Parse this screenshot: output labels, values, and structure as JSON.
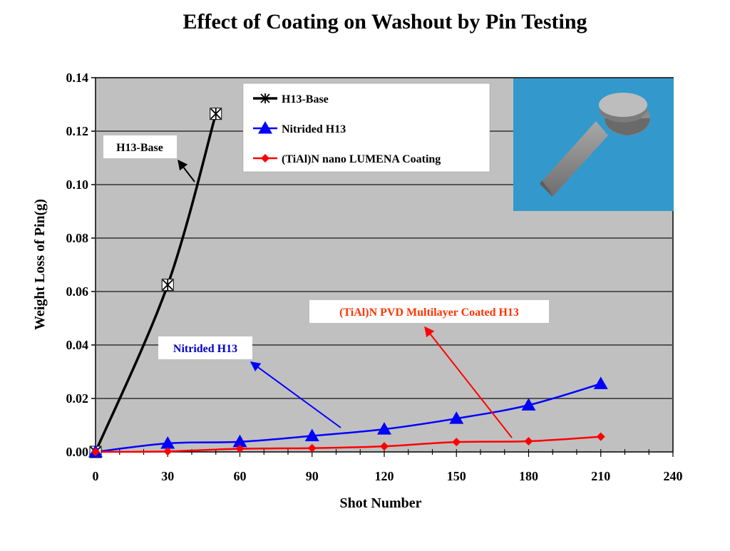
{
  "chart_data": {
    "type": "line",
    "title": "Effect of Coating on Washout by Pin Testing",
    "xlabel": "Shot Number",
    "ylabel": "Weight Loss of Pin(g)",
    "xlim": [
      0,
      240
    ],
    "ylim": [
      0,
      0.14
    ],
    "x_ticks": [
      "0",
      "30",
      "60",
      "90",
      "120",
      "150",
      "180",
      "210",
      "240"
    ],
    "y_ticks": [
      "0.00",
      "0.02",
      "0.04",
      "0.06",
      "0.08",
      "0.10",
      "0.12",
      "0.14"
    ],
    "grid": true,
    "plot_background": "#c0c0c0",
    "legend_position": "top",
    "series": [
      {
        "name": "H13-Base",
        "color": "#000000",
        "marker": "asterisk",
        "x": [
          0,
          30,
          50
        ],
        "y": [
          0.0,
          0.0625,
          0.1265
        ]
      },
      {
        "name": "Nitrided H13",
        "color": "#0000ff",
        "marker": "triangle",
        "x": [
          0,
          30,
          60,
          90,
          120,
          150,
          180,
          210
        ],
        "y": [
          0.0,
          0.0032,
          0.0038,
          0.006,
          0.0085,
          0.0125,
          0.0175,
          0.0255
        ]
      },
      {
        "name": "(TiAl)N nano LUMENA Coating",
        "color": "#ff0000",
        "marker": "diamond",
        "x": [
          0,
          30,
          60,
          90,
          120,
          150,
          180,
          210
        ],
        "y": [
          0.0,
          0.0002,
          0.0012,
          0.0014,
          0.0021,
          0.0037,
          0.004,
          0.0057
        ]
      }
    ],
    "annotations": [
      {
        "text": "H13-Base",
        "color": "#000000"
      },
      {
        "text": "Nitrided H13",
        "color": "#0000cc"
      },
      {
        "text": "(TiAl)N PVD Multilayer Coated H13",
        "color": "#ff3300"
      }
    ],
    "inset_image": {
      "description_icon": "pin-3d-icon",
      "background": "#3399cc"
    }
  }
}
